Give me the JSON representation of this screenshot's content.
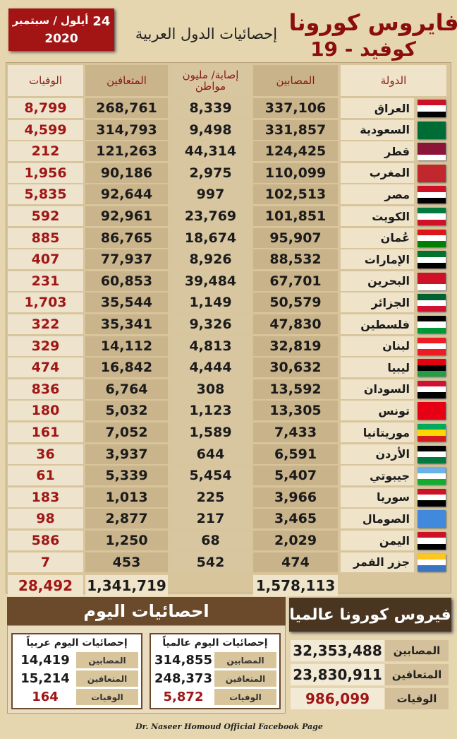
{
  "header": {
    "title": "فايروس كورونا",
    "subtitle": "كوفيد - 19",
    "heading": "إحصائيات الدول العربية",
    "date_day": "24",
    "date_month": "أيلول / سبتمبر",
    "date_year": "2020"
  },
  "table": {
    "columns": [
      "الدولة",
      "المصابين",
      "إصابة/ مليون مواطن",
      "المتعافين",
      "الوفيات"
    ],
    "rows": [
      [
        "العراق",
        "337,106",
        "8,339",
        "268,761",
        "8,799"
      ],
      [
        "السعودية",
        "331,857",
        "9,498",
        "314,793",
        "4,599"
      ],
      [
        "قطر",
        "124,425",
        "44,314",
        "121,263",
        "212"
      ],
      [
        "المغرب",
        "110,099",
        "2,975",
        "90,186",
        "1,956"
      ],
      [
        "مصر",
        "102,513",
        "997",
        "92,644",
        "5,835"
      ],
      [
        "الكويت",
        "101,851",
        "23,769",
        "92,961",
        "592"
      ],
      [
        "عُمان",
        "95,907",
        "18,674",
        "86,765",
        "885"
      ],
      [
        "الإمارات",
        "88,532",
        "8,926",
        "77,937",
        "407"
      ],
      [
        "البحرين",
        "67,701",
        "39,484",
        "60,853",
        "231"
      ],
      [
        "الجزائر",
        "50,579",
        "1,149",
        "35,544",
        "1,703"
      ],
      [
        "فلسطين",
        "47,830",
        "9,326",
        "35,341",
        "322"
      ],
      [
        "لبنان",
        "32,819",
        "4,813",
        "14,112",
        "329"
      ],
      [
        "ليبيا",
        "30,632",
        "4,444",
        "16,842",
        "474"
      ],
      [
        "السودان",
        "13,592",
        "308",
        "6,764",
        "836"
      ],
      [
        "تونس",
        "13,305",
        "1,123",
        "5,032",
        "180"
      ],
      [
        "موريتانيا",
        "7,433",
        "1,589",
        "7,052",
        "161"
      ],
      [
        "الأردن",
        "6,591",
        "644",
        "3,937",
        "36"
      ],
      [
        "جيبوتي",
        "5,407",
        "5,454",
        "5,339",
        "61"
      ],
      [
        "سوريا",
        "3,966",
        "225",
        "1,013",
        "183"
      ],
      [
        "الصومال",
        "3,465",
        "217",
        "2,877",
        "98"
      ],
      [
        "اليمن",
        "2,029",
        "68",
        "1,250",
        "586"
      ],
      [
        "جزر القمر",
        "474",
        "542",
        "453",
        "7"
      ]
    ],
    "totals": {
      "cases": "1,578,113",
      "recovered": "1,341,719",
      "deaths": "28,492"
    }
  },
  "today": {
    "title": "احصائيات اليوم",
    "world": {
      "title": "إحصائيات اليوم عالمياً",
      "rows": [
        [
          "المصابين",
          "314,855"
        ],
        [
          "المتعافين",
          "248,373"
        ],
        [
          "الوفيات",
          "5,872"
        ]
      ]
    },
    "arab": {
      "title": "إحصائيات اليوم عربياً",
      "rows": [
        [
          "المصابين",
          "14,419"
        ],
        [
          "المتعافين",
          "15,214"
        ],
        [
          "الوفيات",
          "164"
        ]
      ]
    }
  },
  "global": {
    "title": "فيروس كورونا عالميا",
    "rows": [
      [
        "المصابين",
        "32,353,488"
      ],
      [
        "المتعافين",
        "23,830,911"
      ],
      [
        "الوفيات",
        "986,099"
      ]
    ]
  },
  "footer": "Dr. Naseer Homoud Official Facebook Page"
}
